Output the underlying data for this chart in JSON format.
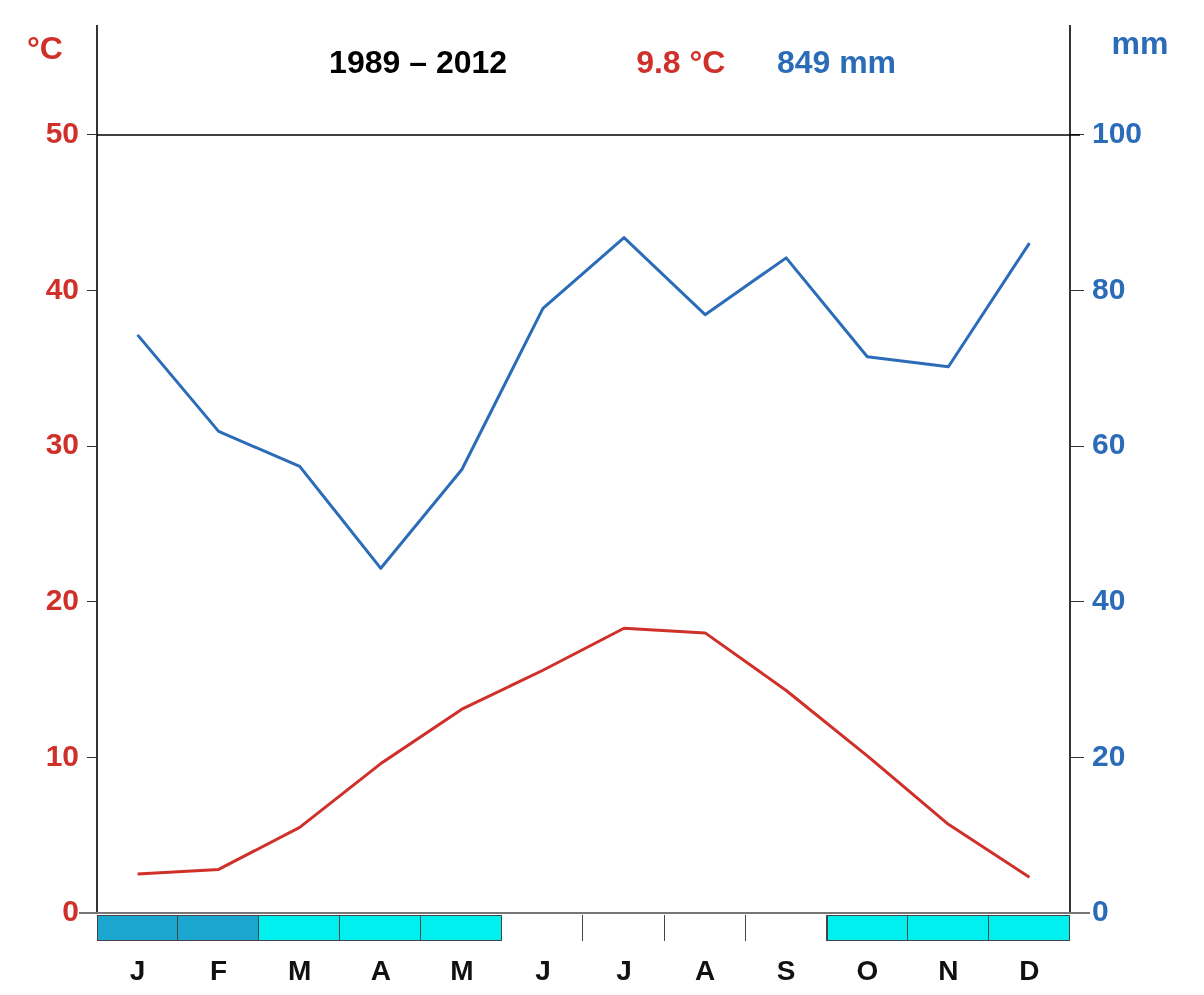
{
  "chart_data": {
    "type": "line",
    "ylabel": "°C",
    "y2label": "mm",
    "annotations": [
      "1989 – 2012",
      "9.8 °C",
      "849 mm"
    ],
    "categories": [
      "J",
      "F",
      "M",
      "A",
      "M",
      "J",
      "J",
      "A",
      "S",
      "O",
      "N",
      "D"
    ],
    "ylim": [
      0,
      57
    ],
    "yticks": [
      0,
      10,
      20,
      30,
      40,
      50
    ],
    "y2lim": [
      0,
      114
    ],
    "y2ticks": [
      0,
      20,
      40,
      60,
      80,
      100
    ],
    "series": [
      {
        "color": "#d0302a",
        "values": [
          2.5,
          2.8,
          5.5,
          9.6,
          13.1,
          15.6,
          18.3,
          18.0,
          14.3,
          10.1,
          5.7,
          2.3
        ]
      },
      {
        "color": "#2b6cb8",
        "axis": "y2",
        "values": [
          74.3,
          61.9,
          57.4,
          44.3,
          57.0,
          77.7,
          86.8,
          76.9,
          84.2,
          71.5,
          70.2,
          86.1
        ]
      }
    ],
    "ref_lines": [
      {
        "axis": "y",
        "value": 50,
        "color": "#000000"
      }
    ],
    "grid": false,
    "legend": false,
    "marker": "none"
  }
}
